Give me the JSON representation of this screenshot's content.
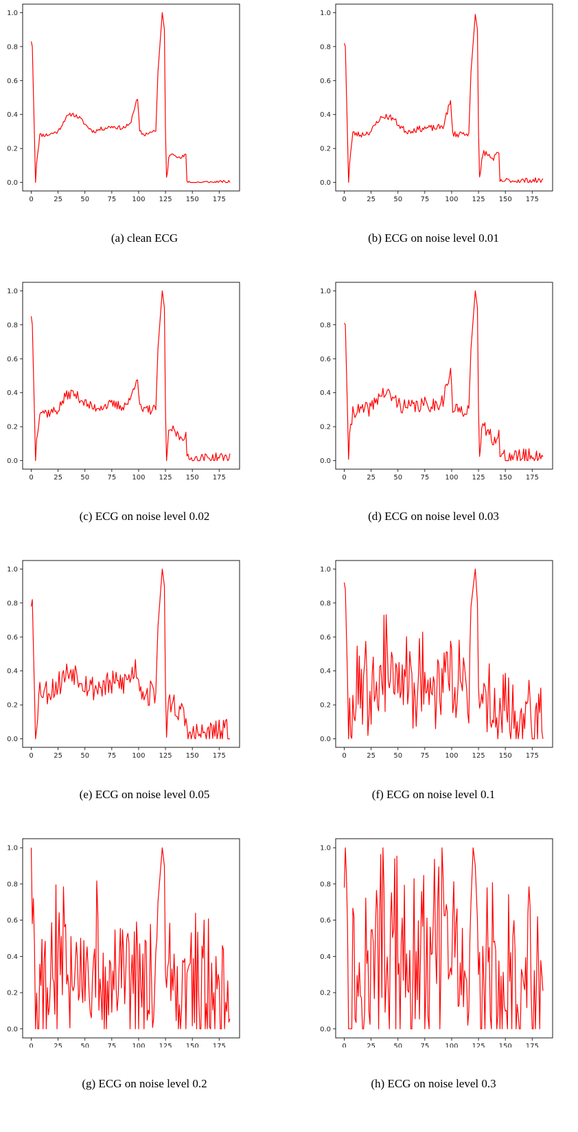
{
  "chart_data": [
    {
      "type": "line",
      "caption": "(a) clean ECG",
      "color": "#ff0000",
      "xlim": [
        -8,
        194
      ],
      "ylim": [
        -0.05,
        1.05
      ],
      "xticks": [
        0,
        25,
        50,
        75,
        100,
        125,
        150,
        175
      ],
      "yticks": [
        0.0,
        0.2,
        0.4,
        0.6,
        0.8,
        1.0
      ],
      "keypoints": [
        [
          0,
          0.83
        ],
        [
          1,
          0.8
        ],
        [
          4,
          0.0
        ],
        [
          5,
          0.12
        ],
        [
          8,
          0.28
        ],
        [
          15,
          0.28
        ],
        [
          25,
          0.3
        ],
        [
          32,
          0.38
        ],
        [
          38,
          0.405
        ],
        [
          45,
          0.38
        ],
        [
          52,
          0.33
        ],
        [
          58,
          0.3
        ],
        [
          65,
          0.315
        ],
        [
          75,
          0.33
        ],
        [
          85,
          0.32
        ],
        [
          92,
          0.34
        ],
        [
          97,
          0.46
        ],
        [
          99,
          0.49
        ],
        [
          101,
          0.3
        ],
        [
          105,
          0.28
        ],
        [
          108,
          0.29
        ],
        [
          116,
          0.3
        ],
        [
          118,
          0.65
        ],
        [
          122,
          1.0
        ],
        [
          124,
          0.9
        ],
        [
          125,
          0.3
        ],
        [
          126,
          0.04
        ],
        [
          127,
          0.06
        ],
        [
          128,
          0.14
        ],
        [
          130,
          0.17
        ],
        [
          134,
          0.17
        ],
        [
          138,
          0.14
        ],
        [
          144,
          0.16
        ],
        [
          145,
          0.01
        ],
        [
          148,
          0.0
        ],
        [
          185,
          0.0
        ]
      ],
      "noise": 0.012,
      "seed": 11
    },
    {
      "type": "line",
      "caption": "(b) ECG on noise level 0.01",
      "color": "#ff0000",
      "xlim": [
        -8,
        194
      ],
      "ylim": [
        -0.05,
        1.05
      ],
      "xticks": [
        0,
        25,
        50,
        75,
        100,
        125,
        150,
        175
      ],
      "yticks": [
        0.0,
        0.2,
        0.4,
        0.6,
        0.8,
        1.0
      ],
      "keypoints": [
        [
          0,
          0.82
        ],
        [
          1,
          0.8
        ],
        [
          4,
          0.01
        ],
        [
          5,
          0.12
        ],
        [
          8,
          0.29
        ],
        [
          15,
          0.28
        ],
        [
          25,
          0.3
        ],
        [
          32,
          0.37
        ],
        [
          38,
          0.39
        ],
        [
          45,
          0.38
        ],
        [
          52,
          0.33
        ],
        [
          58,
          0.3
        ],
        [
          65,
          0.31
        ],
        [
          75,
          0.32
        ],
        [
          85,
          0.32
        ],
        [
          92,
          0.33
        ],
        [
          97,
          0.44
        ],
        [
          99,
          0.47
        ],
        [
          101,
          0.29
        ],
        [
          105,
          0.28
        ],
        [
          108,
          0.29
        ],
        [
          116,
          0.29
        ],
        [
          118,
          0.65
        ],
        [
          122,
          0.99
        ],
        [
          124,
          0.9
        ],
        [
          125,
          0.3
        ],
        [
          126,
          0.02
        ],
        [
          127,
          0.05
        ],
        [
          128,
          0.13
        ],
        [
          130,
          0.18
        ],
        [
          134,
          0.16
        ],
        [
          138,
          0.14
        ],
        [
          144,
          0.17
        ],
        [
          145,
          0.0
        ],
        [
          148,
          0.01
        ],
        [
          185,
          0.01
        ]
      ],
      "noise": 0.018,
      "seed": 23
    },
    {
      "type": "line",
      "caption": "(c) ECG on noise level 0.02",
      "color": "#ff0000",
      "xlim": [
        -8,
        194
      ],
      "ylim": [
        -0.05,
        1.05
      ],
      "xticks": [
        0,
        25,
        50,
        75,
        100,
        125,
        150,
        175
      ],
      "yticks": [
        0.0,
        0.2,
        0.4,
        0.6,
        0.8,
        1.0
      ],
      "keypoints": [
        [
          0,
          0.85
        ],
        [
          1,
          0.8
        ],
        [
          4,
          0.01
        ],
        [
          5,
          0.12
        ],
        [
          8,
          0.3
        ],
        [
          15,
          0.28
        ],
        [
          25,
          0.3
        ],
        [
          32,
          0.38
        ],
        [
          38,
          0.4
        ],
        [
          45,
          0.37
        ],
        [
          52,
          0.33
        ],
        [
          58,
          0.31
        ],
        [
          65,
          0.32
        ],
        [
          75,
          0.33
        ],
        [
          85,
          0.32
        ],
        [
          92,
          0.35
        ],
        [
          97,
          0.47
        ],
        [
          99,
          0.5
        ],
        [
          101,
          0.31
        ],
        [
          105,
          0.29
        ],
        [
          108,
          0.3
        ],
        [
          116,
          0.3
        ],
        [
          118,
          0.66
        ],
        [
          122,
          1.0
        ],
        [
          124,
          0.9
        ],
        [
          125,
          0.3
        ],
        [
          126,
          0.01
        ],
        [
          127,
          0.06
        ],
        [
          128,
          0.15
        ],
        [
          130,
          0.19
        ],
        [
          134,
          0.17
        ],
        [
          138,
          0.14
        ],
        [
          144,
          0.15
        ],
        [
          145,
          0.01
        ],
        [
          148,
          0.01
        ],
        [
          185,
          0.02
        ]
      ],
      "noise": 0.03,
      "seed": 37
    },
    {
      "type": "line",
      "caption": "(d) ECG on noise level 0.03",
      "color": "#ff0000",
      "xlim": [
        -8,
        194
      ],
      "ylim": [
        -0.05,
        1.05
      ],
      "xticks": [
        0,
        25,
        50,
        75,
        100,
        125,
        150,
        175
      ],
      "yticks": [
        0.0,
        0.2,
        0.4,
        0.6,
        0.8,
        1.0
      ],
      "keypoints": [
        [
          0,
          0.81
        ],
        [
          1,
          0.8
        ],
        [
          4,
          0.03
        ],
        [
          5,
          0.12
        ],
        [
          8,
          0.3
        ],
        [
          15,
          0.29
        ],
        [
          25,
          0.31
        ],
        [
          32,
          0.38
        ],
        [
          38,
          0.4
        ],
        [
          45,
          0.37
        ],
        [
          52,
          0.33
        ],
        [
          58,
          0.31
        ],
        [
          65,
          0.32
        ],
        [
          75,
          0.33
        ],
        [
          85,
          0.33
        ],
        [
          92,
          0.36
        ],
        [
          97,
          0.48
        ],
        [
          99,
          0.51
        ],
        [
          101,
          0.31
        ],
        [
          105,
          0.29
        ],
        [
          108,
          0.3
        ],
        [
          116,
          0.31
        ],
        [
          118,
          0.66
        ],
        [
          122,
          1.0
        ],
        [
          124,
          0.9
        ],
        [
          125,
          0.3
        ],
        [
          126,
          0.03
        ],
        [
          127,
          0.07
        ],
        [
          128,
          0.15
        ],
        [
          130,
          0.2
        ],
        [
          134,
          0.17
        ],
        [
          138,
          0.13
        ],
        [
          144,
          0.16
        ],
        [
          145,
          0.02
        ],
        [
          148,
          0.02
        ],
        [
          185,
          0.03
        ]
      ],
      "noise": 0.045,
      "seed": 41
    },
    {
      "type": "line",
      "caption": "(e) ECG on noise level 0.05",
      "color": "#ff0000",
      "xlim": [
        -8,
        194
      ],
      "ylim": [
        -0.05,
        1.05
      ],
      "xticks": [
        0,
        25,
        50,
        75,
        100,
        125,
        150,
        175
      ],
      "yticks": [
        0.0,
        0.2,
        0.4,
        0.6,
        0.8,
        1.0
      ],
      "keypoints": [
        [
          0,
          0.78
        ],
        [
          1,
          0.82
        ],
        [
          4,
          0.0
        ],
        [
          5,
          0.12
        ],
        [
          8,
          0.3
        ],
        [
          15,
          0.28
        ],
        [
          25,
          0.32
        ],
        [
          32,
          0.38
        ],
        [
          38,
          0.41
        ],
        [
          45,
          0.37
        ],
        [
          52,
          0.32
        ],
        [
          58,
          0.3
        ],
        [
          65,
          0.31
        ],
        [
          75,
          0.32
        ],
        [
          85,
          0.33
        ],
        [
          92,
          0.36
        ],
        [
          97,
          0.42
        ],
        [
          99,
          0.4
        ],
        [
          101,
          0.32
        ],
        [
          105,
          0.28
        ],
        [
          108,
          0.26
        ],
        [
          116,
          0.28
        ],
        [
          118,
          0.66
        ],
        [
          122,
          1.0
        ],
        [
          124,
          0.9
        ],
        [
          125,
          0.3
        ],
        [
          126,
          0.06
        ],
        [
          127,
          0.1
        ],
        [
          128,
          0.18
        ],
        [
          130,
          0.22
        ],
        [
          134,
          0.2
        ],
        [
          138,
          0.15
        ],
        [
          144,
          0.12
        ],
        [
          145,
          0.03
        ],
        [
          148,
          0.02
        ],
        [
          185,
          0.04
        ]
      ],
      "noise": 0.08,
      "seed": 53
    },
    {
      "type": "line",
      "caption": "(f) ECG on noise level 0.1",
      "color": "#ff0000",
      "xlim": [
        -8,
        194
      ],
      "ylim": [
        -0.05,
        1.05
      ],
      "xticks": [
        0,
        25,
        50,
        75,
        100,
        125,
        150,
        175
      ],
      "yticks": [
        0.0,
        0.2,
        0.4,
        0.6,
        0.8,
        1.0
      ],
      "keypoints": [
        [
          0,
          0.92
        ],
        [
          1,
          0.88
        ],
        [
          4,
          0.1
        ],
        [
          5,
          0.12
        ],
        [
          8,
          0.2
        ],
        [
          15,
          0.3
        ],
        [
          25,
          0.34
        ],
        [
          32,
          0.42
        ],
        [
          38,
          0.44
        ],
        [
          45,
          0.38
        ],
        [
          52,
          0.32
        ],
        [
          58,
          0.3
        ],
        [
          65,
          0.32
        ],
        [
          75,
          0.33
        ],
        [
          85,
          0.33
        ],
        [
          92,
          0.37
        ],
        [
          97,
          0.45
        ],
        [
          99,
          0.5
        ],
        [
          101,
          0.34
        ],
        [
          105,
          0.3
        ],
        [
          108,
          0.28
        ],
        [
          116,
          0.3
        ],
        [
          118,
          0.78
        ],
        [
          122,
          1.0
        ],
        [
          124,
          0.8
        ],
        [
          125,
          0.3
        ],
        [
          126,
          0.06
        ],
        [
          127,
          0.12
        ],
        [
          128,
          0.18
        ],
        [
          130,
          0.22
        ],
        [
          134,
          0.18
        ],
        [
          138,
          0.12
        ],
        [
          144,
          0.14
        ],
        [
          145,
          0.08
        ],
        [
          148,
          0.1
        ],
        [
          185,
          0.1
        ]
      ],
      "noise": 0.14,
      "seed": 67
    },
    {
      "type": "line",
      "caption": "(g) ECG on noise level 0.2",
      "color": "#ff0000",
      "xlim": [
        -8,
        194
      ],
      "ylim": [
        -0.05,
        1.05
      ],
      "xticks": [
        0,
        25,
        50,
        75,
        100,
        125,
        150,
        175
      ],
      "yticks": [
        0.0,
        0.2,
        0.4,
        0.6,
        0.8,
        1.0
      ],
      "keypoints": [
        [
          0,
          1.0
        ],
        [
          1,
          0.58
        ],
        [
          2,
          0.72
        ],
        [
          4,
          0.2
        ],
        [
          5,
          0.0
        ],
        [
          8,
          0.15
        ],
        [
          15,
          0.3
        ],
        [
          25,
          0.32
        ],
        [
          32,
          0.4
        ],
        [
          38,
          0.42
        ],
        [
          45,
          0.35
        ],
        [
          52,
          0.32
        ],
        [
          58,
          0.3
        ],
        [
          65,
          0.3
        ],
        [
          75,
          0.32
        ],
        [
          85,
          0.33
        ],
        [
          92,
          0.36
        ],
        [
          97,
          0.42
        ],
        [
          99,
          0.45
        ],
        [
          101,
          0.32
        ],
        [
          105,
          0.3
        ],
        [
          108,
          0.28
        ],
        [
          116,
          0.3
        ],
        [
          118,
          0.7
        ],
        [
          122,
          1.0
        ],
        [
          124,
          0.9
        ],
        [
          125,
          0.3
        ],
        [
          126,
          0.05
        ],
        [
          127,
          0.1
        ],
        [
          128,
          0.18
        ],
        [
          130,
          0.2
        ],
        [
          134,
          0.18
        ],
        [
          138,
          0.15
        ],
        [
          144,
          0.16
        ],
        [
          145,
          0.1
        ],
        [
          148,
          0.18
        ],
        [
          185,
          0.2
        ]
      ],
      "noise": 0.24,
      "seed": 79
    },
    {
      "type": "line",
      "caption": "(h) ECG on noise level 0.3",
      "color": "#ff0000",
      "xlim": [
        -8,
        194
      ],
      "ylim": [
        -0.05,
        1.05
      ],
      "xticks": [
        0,
        25,
        50,
        75,
        100,
        125,
        150,
        175
      ],
      "yticks": [
        0.0,
        0.2,
        0.4,
        0.6,
        0.8,
        1.0
      ],
      "keypoints": [
        [
          0,
          0.78
        ],
        [
          1,
          1.0
        ],
        [
          2,
          0.85
        ],
        [
          4,
          0.3
        ],
        [
          5,
          0.0
        ],
        [
          8,
          0.2
        ],
        [
          15,
          0.3
        ],
        [
          25,
          0.32
        ],
        [
          32,
          0.4
        ],
        [
          38,
          0.42
        ],
        [
          45,
          0.35
        ],
        [
          52,
          0.32
        ],
        [
          58,
          0.3
        ],
        [
          65,
          0.3
        ],
        [
          75,
          0.32
        ],
        [
          85,
          0.33
        ],
        [
          92,
          0.36
        ],
        [
          97,
          0.42
        ],
        [
          99,
          0.45
        ],
        [
          101,
          0.32
        ],
        [
          105,
          0.3
        ],
        [
          108,
          0.28
        ],
        [
          116,
          0.3
        ],
        [
          118,
          0.7
        ],
        [
          120,
          1.0
        ],
        [
          122,
          0.9
        ],
        [
          124,
          0.6
        ],
        [
          125,
          0.3
        ],
        [
          126,
          0.05
        ],
        [
          127,
          0.1
        ],
        [
          128,
          0.2
        ],
        [
          130,
          0.25
        ],
        [
          134,
          0.25
        ],
        [
          138,
          0.2
        ],
        [
          144,
          0.2
        ],
        [
          145,
          0.1
        ],
        [
          148,
          0.15
        ],
        [
          185,
          0.15
        ]
      ],
      "noise": 0.3,
      "seed": 97
    }
  ]
}
